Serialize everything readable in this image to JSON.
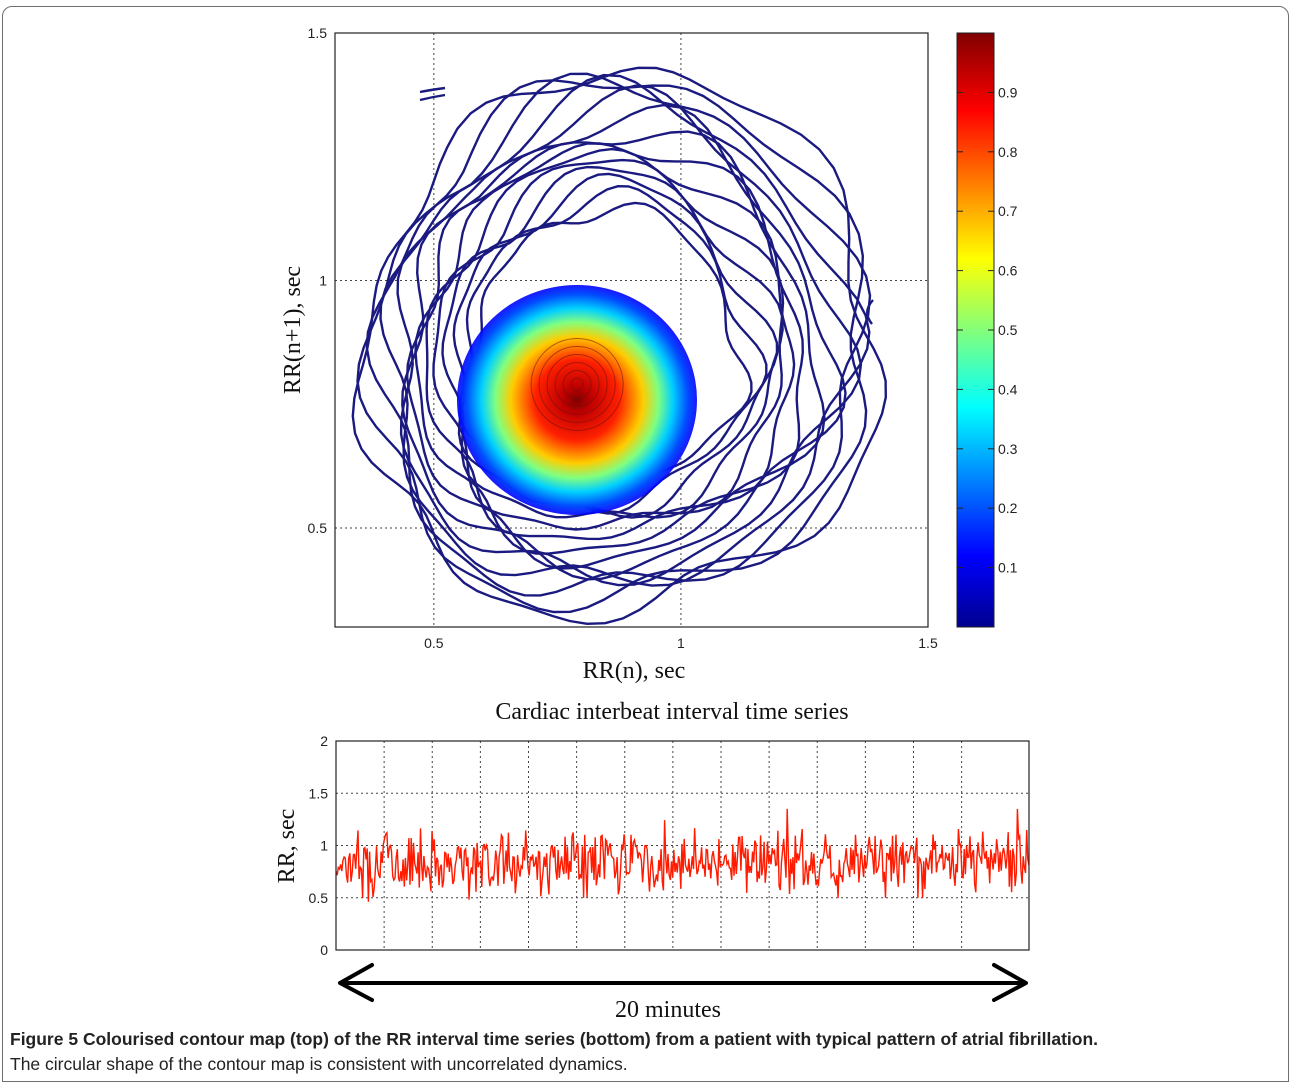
{
  "figure": {
    "caption_label": "Figure 5",
    "caption_title": "Colourised contour map (top) of the RR interval time series (bottom) from a patient with typical pattern of atrial fibrillation.",
    "caption_body": "The circular shape of the contour map is consistent with uncorrelated dynamics."
  },
  "chart_data": [
    {
      "type": "contour",
      "title": "",
      "xlabel": "RR(n), sec",
      "ylabel": "RR(n+1), sec",
      "xlim": [
        0.3,
        1.5
      ],
      "ylim": [
        0.3,
        1.5
      ],
      "xticks": [
        "0.5",
        "1",
        "1.5"
      ],
      "yticks": [
        "0.5",
        "1",
        "1.5"
      ],
      "grid": true,
      "colormap": "jet",
      "colorbar": {
        "range": [
          0,
          1
        ],
        "ticks": [
          "0.1",
          "0.2",
          "0.3",
          "0.4",
          "0.5",
          "0.6",
          "0.7",
          "0.8",
          "0.9"
        ],
        "colors": [
          "#00008f",
          "#0000ff",
          "#00ffff",
          "#ffff00",
          "#ff0000",
          "#800000"
        ]
      },
      "peak": {
        "x": 0.79,
        "y": 0.79,
        "value": 1.0
      },
      "contour_color_outer": "#1a1a80"
    },
    {
      "type": "line",
      "title": "Cardiac interbeat interval time series",
      "xlabel": "",
      "ylabel": "RR, sec",
      "ylim": [
        0,
        2
      ],
      "yticks": [
        "0",
        "0.5",
        "1",
        "1.5",
        "2"
      ],
      "grid": true,
      "series": [
        {
          "mean": 0.85,
          "min": 0.45,
          "max": 1.4,
          "samples": 600,
          "color": "#ff1a00"
        }
      ],
      "duration_label": "20 minutes"
    }
  ]
}
